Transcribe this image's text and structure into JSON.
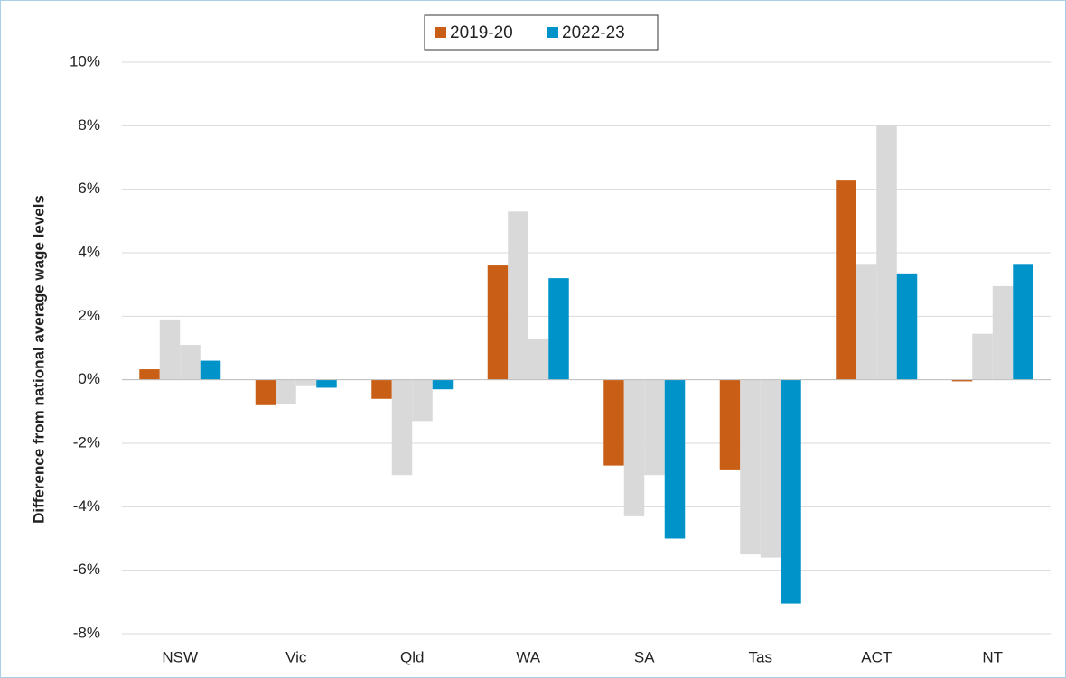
{
  "chart_data": {
    "type": "bar",
    "y_axis_label": "Difference from national average wage levels",
    "categories": [
      "NSW",
      "Vic",
      "Qld",
      "WA",
      "SA",
      "Tas",
      "ACT",
      "NT"
    ],
    "series": [
      {
        "name": "2019-20",
        "color": "#c95f16",
        "values": [
          0.33,
          -0.8,
          -0.6,
          3.6,
          -2.7,
          -2.85,
          6.3,
          -0.05
        ]
      },
      {
        "color": "#d9d9d9",
        "values": [
          1.9,
          -0.75,
          -3.0,
          5.3,
          -4.3,
          -5.5,
          3.65,
          1.45
        ]
      },
      {
        "color": "#d9d9d9",
        "values": [
          1.1,
          -0.2,
          -1.3,
          1.3,
          -3.0,
          -5.6,
          8.0,
          2.95
        ]
      },
      {
        "name": "2022-23",
        "color": "#0093c9",
        "values": [
          0.6,
          -0.25,
          -0.3,
          3.2,
          -5.0,
          -7.05,
          3.35,
          3.65
        ]
      }
    ],
    "ylim": [
      -8,
      10
    ],
    "yticks": [
      {
        "value": -8,
        "label": "-8%"
      },
      {
        "value": -6,
        "label": "-6%"
      },
      {
        "value": -4,
        "label": "-4%"
      },
      {
        "value": -2,
        "label": "-2%"
      },
      {
        "value": 0,
        "label": "0%"
      },
      {
        "value": 2,
        "label": "2%"
      },
      {
        "value": 4,
        "label": "4%"
      },
      {
        "value": 6,
        "label": "6%"
      },
      {
        "value": 8,
        "label": "8%"
      },
      {
        "value": 10,
        "label": "10%"
      }
    ],
    "grid": true,
    "legend": "top"
  }
}
